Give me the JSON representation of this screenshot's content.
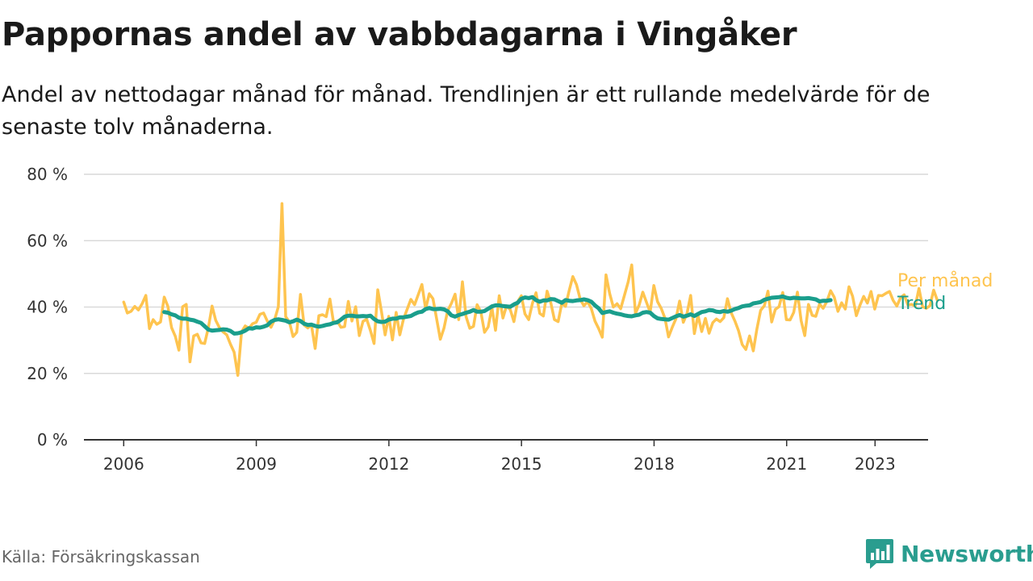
{
  "title": "Pappornas andel av vabbdagarna i Vingåker",
  "subtitle": "Andel av nettodagar månad för månad. Trendlinjen är ett rullande medelvärde för de senaste tolv månaderna.",
  "source": "Källa: Försäkringskassan",
  "brand": {
    "name": "Newsworthy",
    "icon": "newsworthy-logo-icon",
    "color": "#2a9d8f"
  },
  "chart_data": {
    "type": "line",
    "x_unit": "year",
    "ylim": [
      0,
      80
    ],
    "xlim": [
      2005.1,
      2024.2
    ],
    "yticks": [
      0,
      20,
      40,
      60,
      80
    ],
    "ytick_labels": [
      "0 %",
      "20 %",
      "40 %",
      "60 %",
      "80 %"
    ],
    "xticks": [
      2006,
      2009,
      2012,
      2015,
      2018,
      2021,
      2023
    ],
    "xtick_labels": [
      "2006",
      "2009",
      "2012",
      "2015",
      "2018",
      "2021",
      "2023"
    ],
    "grid": true,
    "legend": "right-end labels",
    "series": [
      {
        "name": "Per månad",
        "color": "#fec44f",
        "x_start": 2006.0,
        "x_step": 0.0833,
        "values": [
          41.5,
          38.2,
          38.7,
          40.2,
          39.1,
          41.0,
          43.5,
          33.5,
          36.2,
          34.8,
          35.5,
          43.0,
          40.2,
          33.8,
          31.2,
          27.0,
          40.1,
          40.8,
          23.5,
          31.3,
          31.8,
          29.2,
          29.0,
          33.8,
          40.3,
          36.0,
          33.8,
          32.5,
          31.6,
          28.8,
          26.4,
          19.4,
          32.5,
          34.3,
          33.6,
          35.0,
          35.4,
          37.8,
          38.2,
          35.8,
          33.9,
          36.2,
          40.1,
          71.2,
          37.1,
          35.5,
          31.1,
          32.4,
          43.8,
          34.6,
          33.7,
          34.6,
          27.5,
          37.4,
          37.7,
          37.1,
          42.4,
          35.3,
          35.8,
          33.9,
          34.1,
          41.7,
          35.8,
          40.1,
          31.4,
          35.7,
          36.3,
          33.0,
          29.0,
          45.2,
          38.8,
          31.6,
          37.2,
          30.1,
          38.4,
          31.6,
          36.4,
          39.4,
          42.3,
          40.7,
          43.7,
          46.8,
          39.4,
          44.0,
          42.5,
          36.5,
          30.3,
          33.7,
          38.9,
          41.1,
          43.9,
          36.2,
          47.6,
          37.1,
          33.6,
          34.2,
          40.7,
          38.6,
          32.4,
          34.0,
          39.8,
          33.0,
          43.4,
          36.7,
          40.4,
          39.2,
          35.6,
          41.6,
          43.4,
          37.9,
          36.2,
          41.1,
          44.3,
          38.1,
          37.3,
          44.8,
          41.3,
          36.2,
          35.6,
          41.2,
          40.2,
          45.0,
          49.2,
          46.7,
          42.3,
          40.4,
          41.6,
          39.6,
          35.8,
          33.5,
          30.9,
          49.7,
          44.0,
          40.0,
          41.0,
          39.5,
          43.5,
          47.5,
          52.7,
          38.1,
          40.6,
          44.5,
          41.4,
          38.5,
          46.5,
          41.6,
          39.6,
          36.7,
          31.0,
          33.9,
          36.5,
          41.8,
          35.4,
          38.1,
          43.5,
          32.0,
          37.5,
          32.6,
          36.6,
          32.1,
          35.3,
          36.4,
          35.6,
          36.8,
          42.5,
          38.3,
          35.8,
          32.9,
          28.7,
          27.2,
          31.3,
          26.8,
          33.4,
          39.0,
          40.4,
          44.8,
          35.5,
          39.3,
          40.1,
          44.4,
          36.2,
          36.1,
          38.4,
          44.5,
          35.9,
          31.4,
          40.8,
          37.5,
          37.2,
          40.9,
          39.6,
          41.7,
          44.9,
          43.0,
          38.7,
          41.3,
          39.4,
          46.1,
          43.2,
          37.4,
          40.6,
          43.2,
          41.2,
          44.7,
          39.4,
          43.5,
          43.4,
          44.1,
          44.7,
          42.0,
          40.3,
          42.8,
          43.7,
          40.6,
          40.8,
          40.3,
          45.6,
          40.1,
          39.6,
          40.4,
          45.1,
          42.0
        ]
      },
      {
        "name": "Trend",
        "color": "#1a9e8c",
        "x_start": 2006.9167,
        "x_step": 0.0833,
        "values": [
          38.5,
          38.3,
          37.8,
          37.5,
          36.8,
          36.5,
          36.5,
          36.2,
          36.0,
          35.6,
          35.2,
          34.2,
          33.2,
          32.9,
          33.0,
          33.1,
          33.3,
          33.2,
          32.8,
          32.0,
          32.1,
          32.4,
          32.9,
          33.6,
          33.5,
          33.9,
          33.8,
          34.1,
          34.5,
          35.6,
          36.1,
          36.3,
          36.1,
          35.9,
          35.4,
          35.7,
          36.2,
          35.8,
          35.0,
          34.6,
          34.7,
          34.3,
          34.1,
          34.3,
          34.6,
          34.8,
          35.2,
          35.4,
          36.2,
          37.1,
          37.4,
          37.4,
          37.2,
          37.2,
          37.3,
          37.2,
          37.4,
          36.4,
          35.7,
          35.5,
          35.6,
          36.2,
          36.5,
          36.5,
          36.9,
          36.9,
          37.1,
          37.3,
          37.9,
          38.4,
          38.6,
          39.4,
          39.7,
          39.4,
          39.4,
          39.5,
          39.3,
          38.7,
          37.5,
          37.1,
          37.6,
          37.9,
          38.3,
          38.6,
          39.1,
          38.6,
          38.6,
          38.8,
          39.5,
          40.2,
          40.5,
          40.5,
          40.3,
          40.2,
          40.1,
          40.8,
          41.3,
          42.5,
          42.9,
          42.7,
          43.0,
          42.1,
          41.6,
          42.0,
          42.0,
          42.4,
          42.3,
          41.8,
          41.3,
          42.1,
          41.9,
          41.8,
          42.0,
          42.1,
          42.3,
          42.1,
          41.6,
          40.5,
          39.6,
          38.2,
          38.5,
          38.7,
          38.3,
          38.0,
          37.8,
          37.5,
          37.3,
          37.2,
          37.5,
          37.7,
          38.3,
          38.5,
          38.3,
          37.3,
          36.6,
          36.4,
          36.3,
          36.2,
          36.7,
          37.2,
          37.6,
          37.1,
          37.4,
          37.8,
          37.3,
          37.9,
          38.5,
          38.7,
          39.1,
          39.0,
          38.6,
          38.5,
          38.8,
          38.6,
          38.9,
          39.4,
          39.7,
          40.2,
          40.4,
          40.5,
          41.1,
          41.3,
          41.5,
          42.2,
          42.5,
          42.8,
          42.9,
          43.0,
          43.2,
          42.8,
          42.6,
          42.8,
          42.7,
          42.6,
          42.6,
          42.7,
          42.5,
          42.3,
          41.7,
          41.9,
          41.9,
          42.1
        ]
      }
    ]
  }
}
